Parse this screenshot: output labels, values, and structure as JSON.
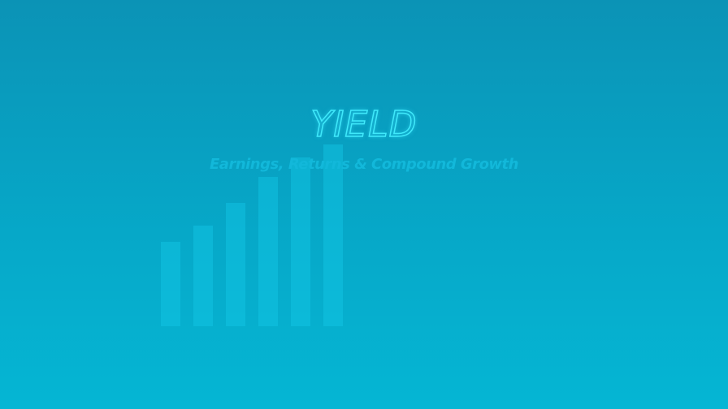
{
  "title": "YIELD",
  "subtitle": "Earnings, Returns & Compound Growth",
  "chart_data": {
    "type": "bar",
    "values": [
      26,
      31,
      38,
      46,
      52,
      56
    ],
    "ylim": [
      0,
      56
    ]
  },
  "colors": {
    "background_top": "#0b93b6",
    "background_bottom": "#05b6d4",
    "title_outline": "#3fe9fb",
    "subtitle": "#12b8da",
    "bars": "#14c8e6"
  }
}
